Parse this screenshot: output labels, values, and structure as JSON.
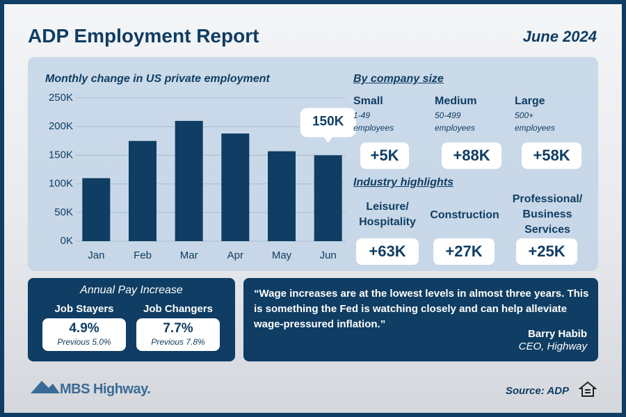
{
  "header": {
    "title": "ADP Employment Report",
    "date": "June 2024"
  },
  "chart_data": {
    "type": "bar",
    "title": "Monthly change in US private employment",
    "categories": [
      "Jan",
      "Feb",
      "Mar",
      "Apr",
      "May",
      "Jun"
    ],
    "values": [
      110000,
      175000,
      210000,
      188000,
      157000,
      150000
    ],
    "value_labels": [
      null,
      null,
      null,
      null,
      null,
      "150K"
    ],
    "color": "#0f3d63",
    "ylim": [
      0,
      250000
    ],
    "yticks": [
      {
        "value": 0,
        "label": "0K"
      },
      {
        "value": 50000,
        "label": "50K"
      },
      {
        "value": 100000,
        "label": "100K"
      },
      {
        "value": 150000,
        "label": "150K"
      },
      {
        "value": 200000,
        "label": "200K"
      },
      {
        "value": 250000,
        "label": "250K"
      }
    ],
    "grid": true
  },
  "company_size": {
    "title": "By company size",
    "items": [
      {
        "name": "Small",
        "range": "1-49 employees",
        "value": "+5K"
      },
      {
        "name": "Medium",
        "range": "50-499 employees",
        "value": "+88K"
      },
      {
        "name": "Large",
        "range": "500+ employees",
        "value": "+58K"
      }
    ]
  },
  "industry": {
    "title": "Industry highlights",
    "items": [
      {
        "name": "Leisure/ Hospitality",
        "value": "+63K"
      },
      {
        "name": "Construction",
        "value": "+27K"
      },
      {
        "name": "Professional/ Business Services",
        "value": "+25K"
      }
    ]
  },
  "pay": {
    "title": "Annual Pay Increase",
    "items": [
      {
        "name": "Job Stayers",
        "value": "4.9%",
        "previous": "Previous 5.0%"
      },
      {
        "name": "Job Changers",
        "value": "7.7%",
        "previous": "Previous 7.8%"
      }
    ]
  },
  "quote": {
    "text": "“Wage increases are at the lowest levels in almost three years. This is something the Fed is watching closely and can help alleviate wage-pressured inflation.”",
    "author": "Barry Habib",
    "role": "CEO, Highway"
  },
  "footer": {
    "logo": "MBS Highway.",
    "source": "Source: ADP"
  }
}
